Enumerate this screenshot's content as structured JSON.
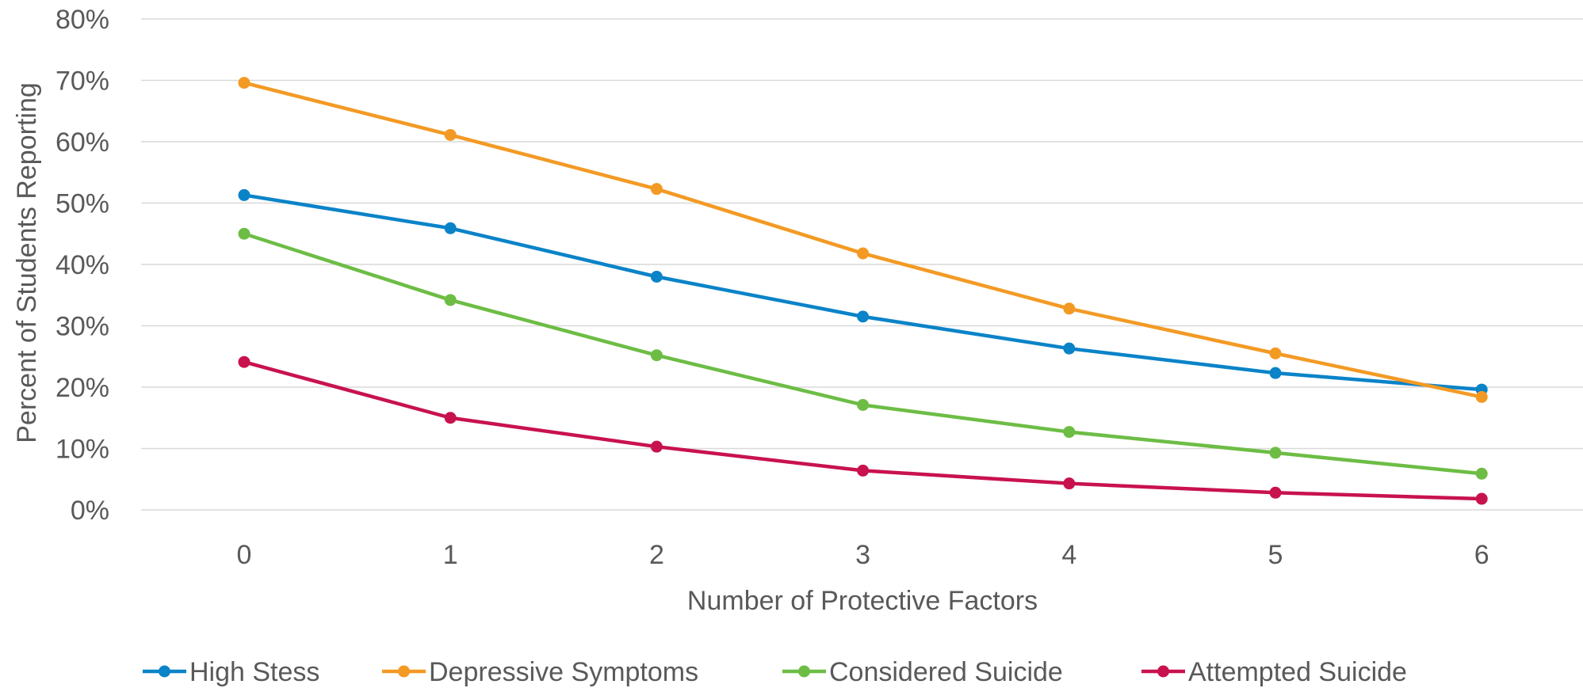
{
  "chart_data": {
    "type": "line",
    "title": "",
    "xlabel": "Number of Protective Factors",
    "ylabel": "Percent of Students Reporting",
    "x": [
      0,
      1,
      2,
      3,
      4,
      5,
      6
    ],
    "x_tick_labels": [
      "0",
      "1",
      "2",
      "3",
      "4",
      "5",
      "6"
    ],
    "ylim": [
      0,
      80
    ],
    "y_ticks": [
      0,
      10,
      20,
      30,
      40,
      50,
      60,
      70,
      80
    ],
    "y_tick_labels": [
      "0%",
      "10%",
      "20%",
      "30%",
      "40%",
      "50%",
      "60%",
      "70%",
      "80%"
    ],
    "grid": "horizontal",
    "legend_position": "bottom",
    "series": [
      {
        "name": "High Stess",
        "color": "#0a83c8",
        "values": [
          51.3,
          45.9,
          38.0,
          31.5,
          26.3,
          22.3,
          19.6
        ]
      },
      {
        "name": "Depressive Symptoms",
        "color": "#f39a24",
        "values": [
          69.6,
          61.1,
          52.3,
          41.8,
          32.8,
          25.5,
          18.4
        ]
      },
      {
        "name": "Considered Suicide",
        "color": "#6dbd45",
        "values": [
          45.0,
          34.2,
          25.2,
          17.1,
          12.7,
          9.3,
          5.9
        ]
      },
      {
        "name": "Attempted Suicide",
        "color": "#c8124e",
        "values": [
          24.1,
          15.0,
          10.3,
          6.4,
          4.3,
          2.8,
          1.8
        ]
      }
    ]
  }
}
